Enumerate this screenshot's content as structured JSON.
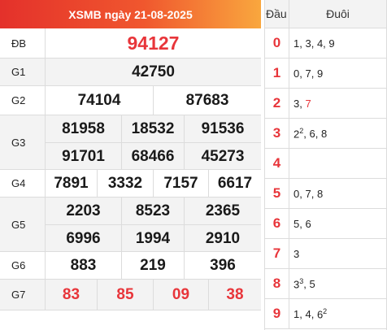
{
  "header": {
    "title": "XSMB ngày 21-08-2025"
  },
  "prizes": [
    {
      "label": "ĐB",
      "lines": [
        [
          "94127"
        ]
      ]
    },
    {
      "label": "G1",
      "lines": [
        [
          "42750"
        ]
      ]
    },
    {
      "label": "G2",
      "lines": [
        [
          "74104",
          "87683"
        ]
      ]
    },
    {
      "label": "G3",
      "lines": [
        [
          "81958",
          "18532",
          "91536"
        ],
        [
          "91701",
          "68466",
          "45273"
        ]
      ]
    },
    {
      "label": "G4",
      "lines": [
        [
          "7891",
          "3332",
          "7157",
          "6617"
        ]
      ]
    },
    {
      "label": "G5",
      "lines": [
        [
          "2203",
          "8523",
          "2365"
        ],
        [
          "6996",
          "1994",
          "2910"
        ]
      ]
    },
    {
      "label": "G6",
      "lines": [
        [
          "883",
          "219",
          "396"
        ]
      ]
    },
    {
      "label": "G7",
      "lines": [
        [
          "83",
          "85",
          "09",
          "38"
        ]
      ]
    }
  ],
  "loto": {
    "head_label": "Đầu",
    "tail_label": "Đuôi",
    "rows": [
      {
        "head": "0",
        "tails": [
          {
            "v": "1"
          },
          {
            "v": "3"
          },
          {
            "v": "4"
          },
          {
            "v": "9"
          }
        ]
      },
      {
        "head": "1",
        "tails": [
          {
            "v": "0"
          },
          {
            "v": "7"
          },
          {
            "v": "9"
          }
        ]
      },
      {
        "head": "2",
        "tails": [
          {
            "v": "3"
          },
          {
            "v": "7",
            "hl": true
          }
        ]
      },
      {
        "head": "3",
        "tails": [
          {
            "v": "2",
            "sup": "2"
          },
          {
            "v": "6"
          },
          {
            "v": "8"
          }
        ]
      },
      {
        "head": "4",
        "tails": []
      },
      {
        "head": "5",
        "tails": [
          {
            "v": "0"
          },
          {
            "v": "7"
          },
          {
            "v": "8"
          }
        ]
      },
      {
        "head": "6",
        "tails": [
          {
            "v": "5"
          },
          {
            "v": "6"
          }
        ]
      },
      {
        "head": "7",
        "tails": [
          {
            "v": "3"
          }
        ]
      },
      {
        "head": "8",
        "tails": [
          {
            "v": "3",
            "sup": "3"
          },
          {
            "v": "5"
          }
        ]
      },
      {
        "head": "9",
        "tails": [
          {
            "v": "1"
          },
          {
            "v": "4"
          },
          {
            "v": "6",
            "sup": "2"
          }
        ]
      }
    ]
  },
  "colors": {
    "accent": "#e8353a",
    "header_gradient": [
      "#e4312b",
      "#f9a73e"
    ],
    "grid": "#dcdcdc",
    "alt_row": "#f3f3f3"
  }
}
